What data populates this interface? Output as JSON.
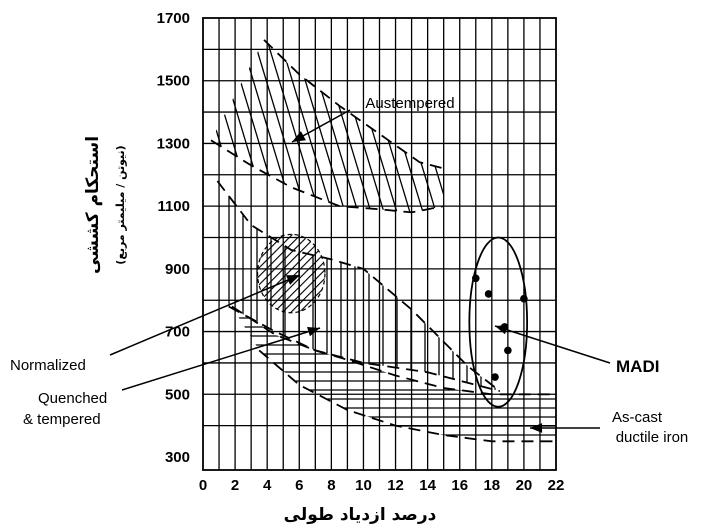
{
  "chart_data": {
    "type": "scatter",
    "title": "",
    "xlabel": "درصد ازدیاد طولی",
    "ylabel": "استحکام کششی",
    "ylabel_unit": "(نیوتن / میلیمتر مربع)",
    "xlim": [
      0,
      22
    ],
    "ylim": [
      300,
      1700
    ],
    "x_ticks": [
      0,
      2,
      4,
      6,
      8,
      10,
      12,
      14,
      16,
      18,
      20,
      22
    ],
    "y_ticks": [
      300,
      500,
      700,
      900,
      1100,
      1300,
      1500,
      1700
    ],
    "grid": true,
    "regions": [
      {
        "name": "Austempered",
        "label": "Austempered",
        "upper": [
          [
            3.8,
            1630
          ],
          [
            6,
            1520
          ],
          [
            8.5,
            1420
          ],
          [
            11,
            1330
          ],
          [
            13.5,
            1240
          ],
          [
            15,
            1220
          ]
        ],
        "lower": [
          [
            0.5,
            1310
          ],
          [
            3,
            1230
          ],
          [
            5.5,
            1160
          ],
          [
            8.5,
            1100
          ],
          [
            11,
            1090
          ],
          [
            13,
            1080
          ],
          [
            15,
            1100
          ]
        ]
      },
      {
        "name": "Quenched & tempered",
        "label": [
          "Quenched",
          "& tempered"
        ],
        "upper": [
          [
            0.9,
            1180
          ],
          [
            3,
            1040
          ],
          [
            5.5,
            960
          ],
          [
            8,
            930
          ],
          [
            10,
            900
          ],
          [
            13,
            770
          ],
          [
            16.5,
            590
          ],
          [
            18.5,
            510
          ]
        ],
        "lower": [
          [
            1.6,
            780
          ],
          [
            4.5,
            700
          ],
          [
            7,
            640
          ],
          [
            10,
            600
          ],
          [
            14,
            570
          ],
          [
            18.5,
            510
          ]
        ]
      },
      {
        "name": "Normalized",
        "label": "Normalized",
        "center": [
          5.5,
          885
        ],
        "rx": 2.1,
        "ry": 125
      },
      {
        "name": "As-cast ductile iron",
        "label": [
          "As-cast",
          "ductile iron"
        ],
        "upper": [
          [
            1.8,
            780
          ],
          [
            4.5,
            690
          ],
          [
            7,
            640
          ],
          [
            9,
            610
          ],
          [
            12,
            560
          ],
          [
            15,
            520
          ],
          [
            18,
            500
          ],
          [
            22,
            500
          ]
        ],
        "lower": [
          [
            3.5,
            640
          ],
          [
            6,
            530
          ],
          [
            9,
            450
          ],
          [
            12,
            400
          ],
          [
            15,
            370
          ],
          [
            18,
            350
          ],
          [
            22,
            350
          ]
        ]
      }
    ],
    "series": [
      {
        "name": "MADI",
        "label": "MADI",
        "points": [
          [
            17,
            870
          ],
          [
            17.8,
            820
          ],
          [
            20,
            805
          ],
          [
            18.8,
            715
          ],
          [
            19,
            640
          ],
          [
            18.2,
            555
          ]
        ],
        "enclosure": {
          "center": [
            18.4,
            730
          ],
          "rx": 1.8,
          "ry": 270
        }
      }
    ]
  }
}
